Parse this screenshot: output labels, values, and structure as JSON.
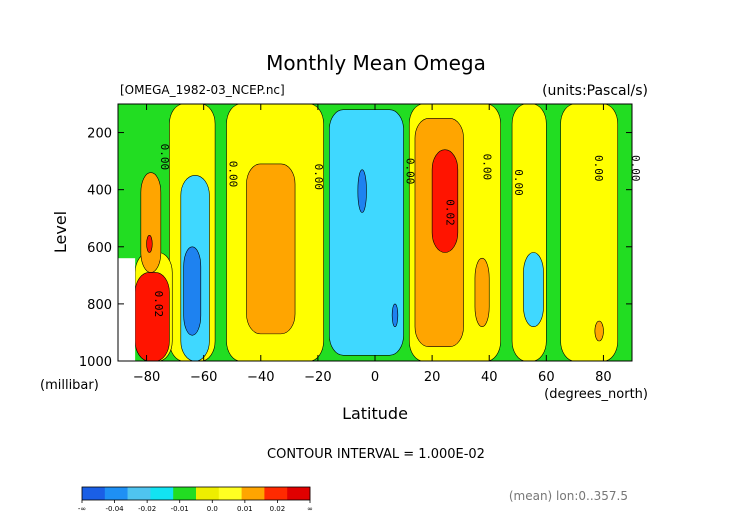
{
  "chart_data": {
    "type": "contour",
    "title": "Monthly Mean Omega",
    "source_file": "[OMEGA_1982-03_NCEP.nc]",
    "units_label": "(units:Pascal/s)",
    "xlabel": "Latitude",
    "x_unit": "(degrees_north)",
    "ylabel": "Level",
    "y_unit": "(millibar)",
    "xlim": [
      -90,
      90
    ],
    "ylim": [
      1000,
      100
    ],
    "x_ticks": [
      -80,
      -60,
      -40,
      -20,
      0,
      20,
      40,
      60,
      80
    ],
    "y_ticks": [
      200,
      400,
      600,
      800,
      1000
    ],
    "contour_interval_text": "CONTOUR INTERVAL = 1.000E-02",
    "contour_labels": [
      "0.00",
      "0.00",
      "0.00",
      "0.00",
      "0.00",
      "0.00",
      "0.00",
      "0.00",
      "0.02",
      "0.02"
    ],
    "footer_text": "(mean) lon:0..357.5",
    "colorbar": {
      "labels": [
        "-∞",
        "-0.04",
        "-0.02",
        "-0.01",
        "0.0",
        "0.01",
        "0.02",
        "∞"
      ],
      "colors": [
        "#1a5fe6",
        "#1e90f5",
        "#4fc4f0",
        "#12e3f2",
        "#22dd22",
        "#eeee00",
        "#ffff22",
        "#ffa500",
        "#ff2a00",
        "#e00000"
      ]
    },
    "palette": {
      "negative_strong": "#1e82f0",
      "negative_weak": "#3fd8ff",
      "near_zero": "#22dd22",
      "positive_weak": "#ffff00",
      "positive_mid": "#ffa500",
      "positive_strong": "#ff1400",
      "masked": "#ffffff"
    },
    "fields": [
      {
        "level": "positive_weak",
        "lat": [
          -72,
          -56
        ],
        "p": [
          100,
          1000
        ]
      },
      {
        "level": "positive_weak",
        "lat": [
          -52,
          -18
        ],
        "p": [
          100,
          1000
        ]
      },
      {
        "level": "positive_mid",
        "lat": [
          -45,
          -28
        ],
        "p": [
          310,
          905
        ]
      },
      {
        "level": "positive_weak",
        "lat": [
          -84,
          -71
        ],
        "p": [
          620,
          1000
        ]
      },
      {
        "level": "positive_mid",
        "lat": [
          -82,
          -75
        ],
        "p": [
          340,
          690
        ]
      },
      {
        "level": "positive_strong",
        "lat": [
          -80,
          -78
        ],
        "p": [
          560,
          620
        ]
      },
      {
        "level": "positive_strong",
        "lat": [
          -84,
          -72
        ],
        "p": [
          690,
          1000
        ]
      },
      {
        "level": "positive_weak",
        "lat": [
          12,
          44
        ],
        "p": [
          100,
          1000
        ]
      },
      {
        "level": "positive_mid",
        "lat": [
          14,
          31
        ],
        "p": [
          150,
          950
        ]
      },
      {
        "level": "positive_strong",
        "lat": [
          20,
          29
        ],
        "p": [
          260,
          620
        ]
      },
      {
        "level": "positive_mid",
        "lat": [
          35,
          40
        ],
        "p": [
          640,
          880
        ]
      },
      {
        "level": "positive_weak",
        "lat": [
          48,
          60
        ],
        "p": [
          100,
          1000
        ]
      },
      {
        "level": "positive_weak",
        "lat": [
          65,
          85
        ],
        "p": [
          100,
          1000
        ]
      },
      {
        "level": "positive_mid",
        "lat": [
          77,
          80
        ],
        "p": [
          860,
          930
        ]
      },
      {
        "level": "negative_weak",
        "lat": [
          -68,
          -58
        ],
        "p": [
          350,
          1000
        ]
      },
      {
        "level": "negative_strong",
        "lat": [
          -67,
          -61
        ],
        "p": [
          600,
          910
        ]
      },
      {
        "level": "negative_weak",
        "lat": [
          -16,
          10
        ],
        "p": [
          120,
          980
        ]
      },
      {
        "level": "negative_strong",
        "lat": [
          -6,
          -3
        ],
        "p": [
          330,
          480
        ]
      },
      {
        "level": "negative_strong",
        "lat": [
          6,
          8
        ],
        "p": [
          800,
          880
        ]
      },
      {
        "level": "negative_weak",
        "lat": [
          52,
          59
        ],
        "p": [
          620,
          880
        ]
      },
      {
        "level": "masked",
        "lat": [
          -90,
          -84
        ],
        "p": [
          640,
          1000
        ]
      }
    ]
  }
}
